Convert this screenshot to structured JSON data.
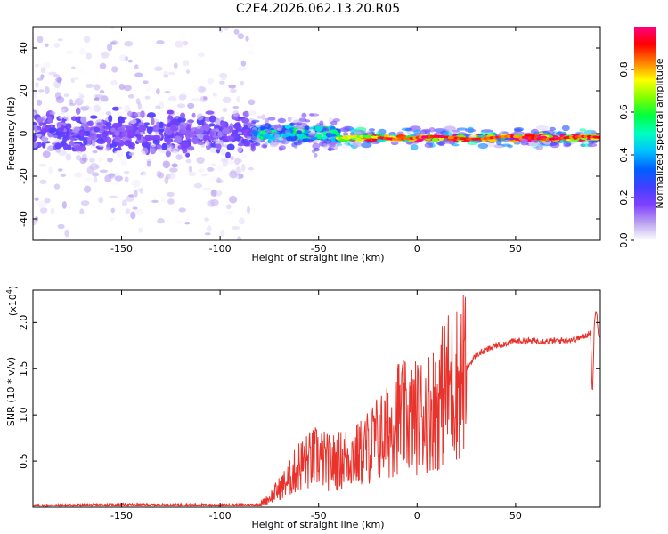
{
  "title": "C2E4.2026.062.13.20.R05",
  "chart_data": [
    {
      "type": "heatmap",
      "xlabel": "Height of straight line (km)",
      "ylabel": "Frequency (Hz)",
      "xlim": [
        -195,
        93
      ],
      "ylim": [
        -50,
        50
      ],
      "xticks": [
        -150,
        -100,
        -50,
        0,
        50
      ],
      "yticks": [
        -40,
        -20,
        0,
        20,
        40
      ],
      "colorbar": {
        "label": "Normalized spectral amplitude",
        "range": [
          0,
          1
        ],
        "ticks": [
          "0.0",
          "0.2",
          "0.4",
          "0.6",
          "0.8"
        ],
        "tick_values": [
          0.0,
          0.2,
          0.4,
          0.6,
          0.8
        ],
        "colors": [
          "#ffffff",
          "#b8a0f0",
          "#8040ff",
          "#4040ff",
          "#0060ff",
          "#00c0ff",
          "#00ffc0",
          "#00ff40",
          "#80ff00",
          "#ffff00",
          "#ff8000",
          "#ff0000",
          "#ff0080"
        ]
      },
      "bands": [
        {
          "x": [
            -195,
            -83
          ],
          "f_center": 0,
          "f_spread": 50,
          "core_spread": 8,
          "amp": 0.18
        },
        {
          "x": [
            -83,
            -40
          ],
          "f_center": 0,
          "f_spread": 8,
          "core_spread": 3,
          "amp": 0.45
        },
        {
          "x": [
            -40,
            93
          ],
          "f_center": -2,
          "f_spread": 4,
          "core_spread": 1,
          "amp": 0.9
        }
      ]
    },
    {
      "type": "line",
      "xlabel": "Height of straight line (km)",
      "ylabel": "SNR (10 * v/v)",
      "scale_label": "(x10",
      "scale_exp": "4",
      "xlim": [
        -195,
        93
      ],
      "ylim": [
        0,
        23500
      ],
      "xticks": [
        -150,
        -100,
        -50,
        0,
        50
      ],
      "yticks": [
        5000,
        10000,
        15000,
        20000
      ],
      "ytick_labels": [
        "0.5",
        "1.0",
        "1.5",
        "2.0"
      ],
      "color": "#e8322b",
      "series": [
        {
          "name": "SNR",
          "x": [
            -195,
            -150,
            -100,
            -80,
            -75,
            -70,
            -65,
            -60,
            -55,
            -50,
            -45,
            -40,
            -35,
            -30,
            -25,
            -20,
            -15,
            -10,
            -5,
            0,
            5,
            10,
            15,
            20,
            25,
            30,
            40,
            50,
            60,
            70,
            80,
            85,
            88,
            89,
            90,
            91,
            92,
            93
          ],
          "values": [
            200,
            300,
            250,
            300,
            1000,
            2000,
            3000,
            4500,
            5000,
            5500,
            4800,
            5000,
            5500,
            5600,
            6500,
            7500,
            8000,
            10000,
            9500,
            9800,
            10500,
            11000,
            13000,
            13500,
            15000,
            16500,
            17500,
            18000,
            18000,
            18000,
            18200,
            18500,
            19000,
            12000,
            20000,
            21500,
            19000,
            18500
          ]
        }
      ]
    }
  ]
}
